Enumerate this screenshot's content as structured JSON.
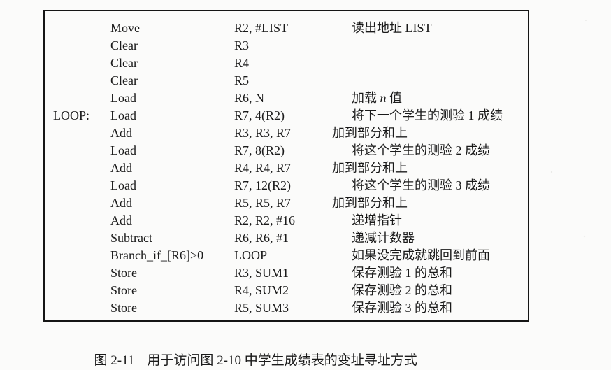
{
  "colors": {
    "paper": "#fbfbfa",
    "ink": "#1a1a1a",
    "border": "#151515"
  },
  "code_box": {
    "rows": [
      {
        "label": "",
        "instruction": "Move",
        "operands": "R2, #LIST",
        "comment": "读出地址 LIST"
      },
      {
        "label": "",
        "instruction": "Clear",
        "operands": "R3",
        "comment": ""
      },
      {
        "label": "",
        "instruction": "Clear",
        "operands": "R4",
        "comment": ""
      },
      {
        "label": "",
        "instruction": "Clear",
        "operands": "R5",
        "comment": ""
      },
      {
        "label": "",
        "instruction": "Load",
        "operands": "R6, N",
        "comment_parts": [
          {
            "text": "加载 "
          },
          {
            "text": "n",
            "em": true
          },
          {
            "text": " 值"
          }
        ]
      },
      {
        "label": "LOOP:",
        "instruction": "Load",
        "operands": "R7, 4(R2)",
        "comment": "将下一个学生的测验 1 成绩"
      },
      {
        "label": "",
        "instruction": "Add",
        "operands": "R3, R3, R7",
        "comment": "加到部分和上",
        "outdent": true
      },
      {
        "label": "",
        "instruction": "Load",
        "operands": "R7, 8(R2)",
        "comment": "将这个学生的测验 2 成绩"
      },
      {
        "label": "",
        "instruction": "Add",
        "operands": "R4, R4, R7",
        "comment": "加到部分和上",
        "outdent": true
      },
      {
        "label": "",
        "instruction": "Load",
        "operands": "R7, 12(R2)",
        "comment": "将这个学生的测验 3 成绩"
      },
      {
        "label": "",
        "instruction": "Add",
        "operands": "R5, R5, R7",
        "comment": "加到部分和上",
        "outdent": true
      },
      {
        "label": "",
        "instruction": "Add",
        "operands": "R2, R2, #16",
        "comment": "递增指针"
      },
      {
        "label": "",
        "instruction": "Subtract",
        "operands": "R6, R6, #1",
        "comment": "递减计数器"
      },
      {
        "label": "",
        "instruction": "Branch_if_[R6]>0",
        "operands": "LOOP",
        "comment": "如果没完成就跳回到前面"
      },
      {
        "label": "",
        "instruction": "Store",
        "operands": "R3, SUM1",
        "comment": "保存测验 1 的总和"
      },
      {
        "label": "",
        "instruction": "Store",
        "operands": "R4, SUM2",
        "comment": "保存测验 2 的总和"
      },
      {
        "label": "",
        "instruction": "Store",
        "operands": "R5, SUM3",
        "comment": "保存测验 3 的总和"
      }
    ]
  },
  "caption": {
    "label": "图 2-11",
    "text": "用于访问图 2-10 中学生成绩表的变址寻址方式"
  }
}
